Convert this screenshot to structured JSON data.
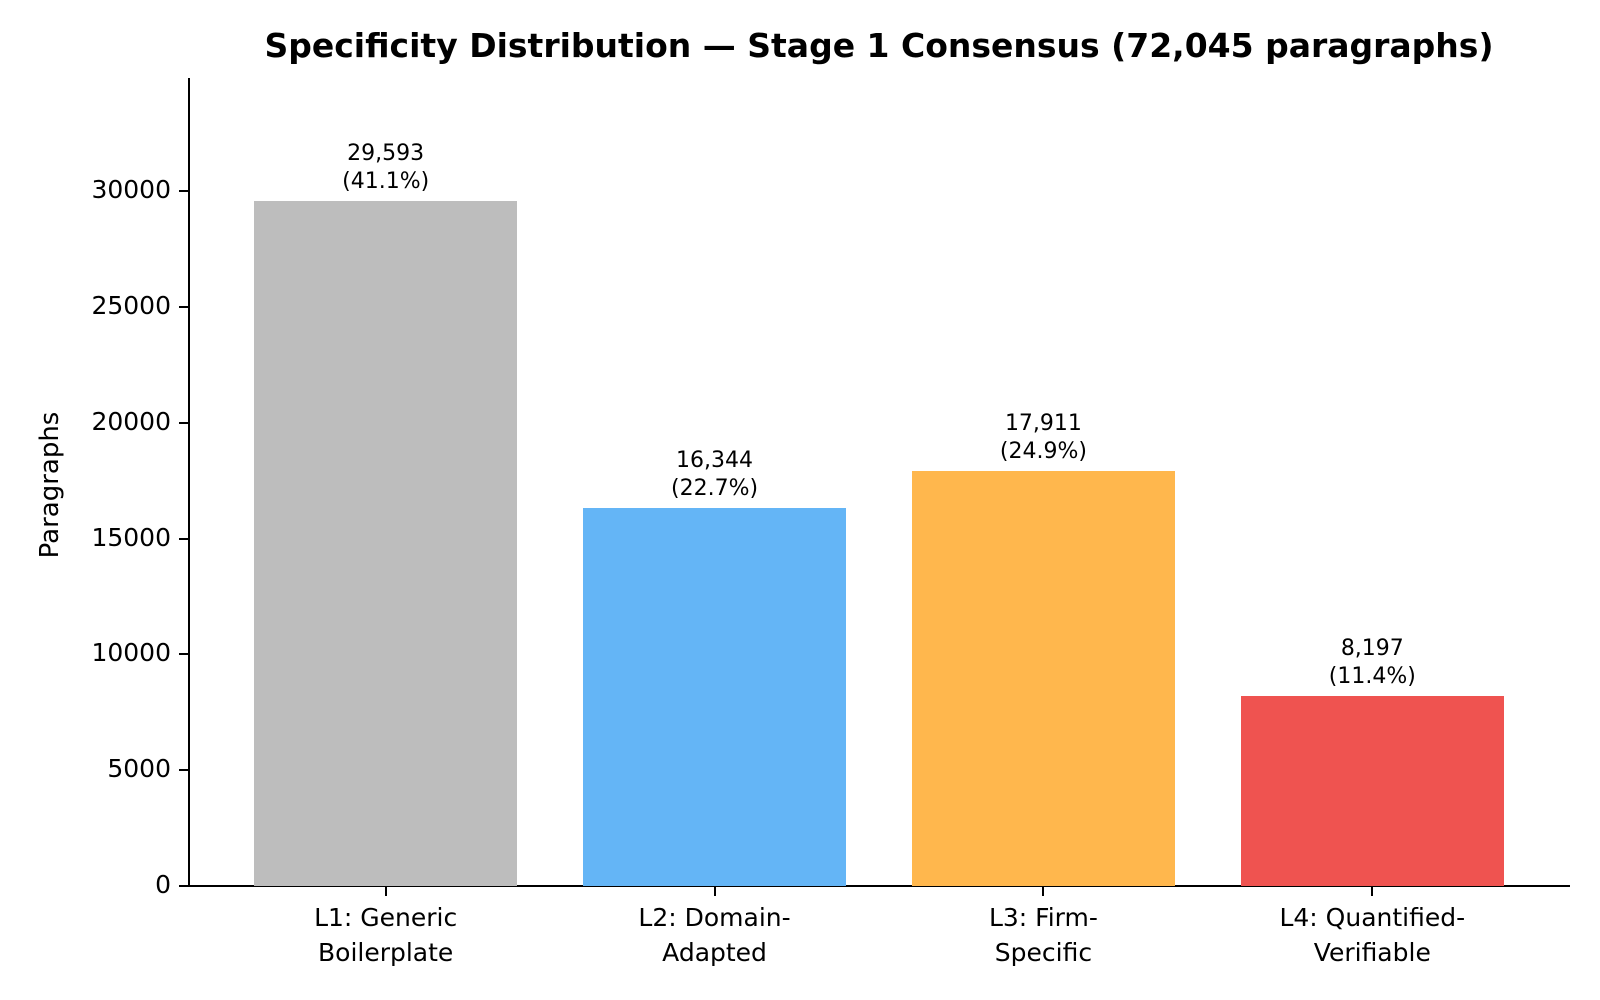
{
  "chart_data": {
    "type": "bar",
    "title": "Specificity Distribution — Stage 1 Consensus (72,045 paragraphs)",
    "xlabel": "",
    "ylabel": "Paragraphs",
    "categories": [
      "L1: Generic Boilerplate",
      "L2: Domain-Adapted",
      "L3: Firm-Specific",
      "L4: Quantified-Verifiable"
    ],
    "category_label_lines": [
      [
        "L1: Generic",
        "Boilerplate"
      ],
      [
        "L2: Domain-",
        "Adapted"
      ],
      [
        "L3: Firm-",
        "Specific"
      ],
      [
        "L4: Quantified-",
        "Verifiable"
      ]
    ],
    "values": [
      29593,
      16344,
      17911,
      8197
    ],
    "value_labels": [
      "29,593",
      "16,344",
      "17,911",
      "8,197"
    ],
    "pct_labels": [
      "(41.1%)",
      "(22.7%)",
      "(24.9%)",
      "(11.4%)"
    ],
    "bar_colors": [
      "#bdbdbd",
      "#64b5f6",
      "#ffb74d",
      "#ef5350"
    ],
    "yticks": [
      0,
      5000,
      10000,
      15000,
      20000,
      25000,
      30000
    ],
    "ytick_labels": [
      "0",
      "5000",
      "10000",
      "15000",
      "20000",
      "25000",
      "30000"
    ],
    "ylim": [
      0,
      34900
    ],
    "grid": false,
    "legend": "none",
    "axis_color": "#000000",
    "background_color": "#ffffff"
  }
}
